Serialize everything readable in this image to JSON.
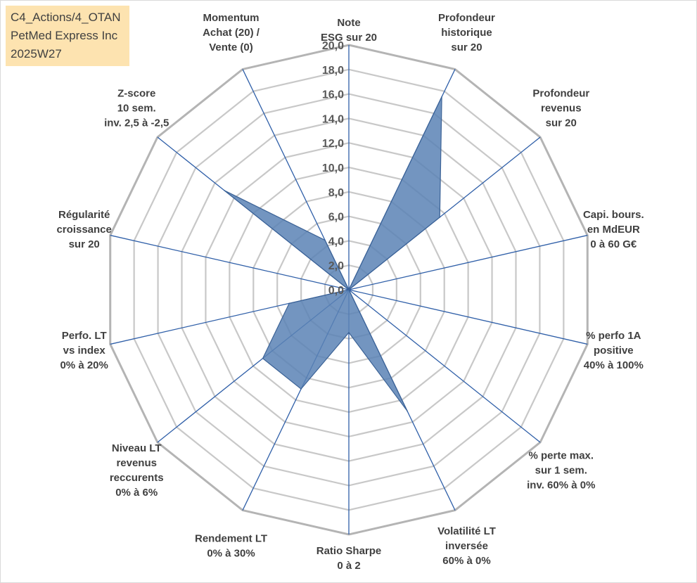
{
  "info": {
    "line1": "C4_Actions/4_OTAN",
    "line2": "PetMed Express Inc",
    "line3": "2025W27"
  },
  "chart_data": {
    "type": "radar",
    "categories": [
      [
        "Note",
        "ESG sur 20"
      ],
      [
        "Profondeur",
        "historique",
        "sur 20"
      ],
      [
        "Profondeur",
        "revenus",
        "sur 20"
      ],
      [
        "Capi. bours.",
        "en MdEUR",
        "0 à 60 G€"
      ],
      [
        "% perfo 1A",
        "positive",
        "40% à 100%"
      ],
      [
        "% perte max.",
        "sur 1 sem.",
        "inv. 60% à 0%"
      ],
      [
        "Volatilité LT",
        "inversée",
        "60% à 0%"
      ],
      [
        "Ratio Sharpe",
        "0 à 2"
      ],
      [
        "Rendement LT",
        "0% à 30%"
      ],
      [
        "Niveau LT",
        "revenus",
        "reccurents",
        "0% à 6%"
      ],
      [
        "Perfo. LT",
        "vs index",
        "0% à 20%"
      ],
      [
        "Régularité",
        "croissance",
        "sur 20"
      ],
      [
        "Z-score",
        "10 sem.",
        "inv. 2,5 à -2,5"
      ],
      [
        "Momentum",
        "Achat (20) /",
        "Vente (0)"
      ]
    ],
    "series": [
      {
        "values": [
          0,
          17.5,
          9.5,
          0,
          0,
          0,
          11,
          3.5,
          9,
          9,
          5,
          0,
          13,
          4.5
        ]
      }
    ],
    "rmin": 0,
    "rmax": 20,
    "ticks": [
      "0,0",
      "2,0",
      "4,0",
      "6,0",
      "8,0",
      "10,0",
      "12,0",
      "14,0",
      "16,0",
      "18,0",
      "20,0"
    ],
    "colors": {
      "fill": "#5b82b5",
      "edge": "#3b6296",
      "spoke": "#2f5fa8",
      "grid": "#c8c8c8",
      "outer": "#b4b4b4"
    }
  }
}
